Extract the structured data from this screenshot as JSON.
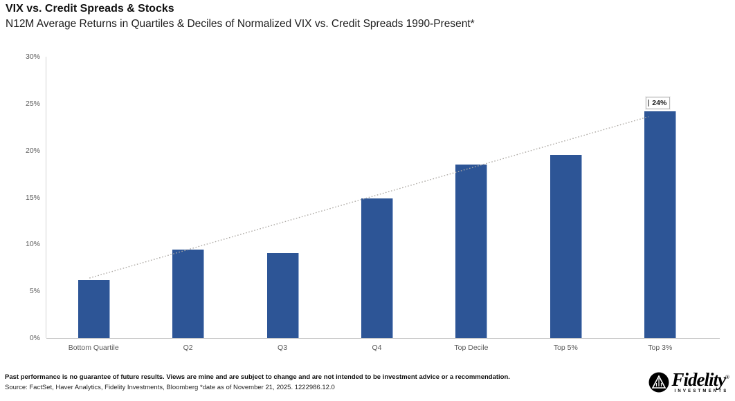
{
  "header": {
    "title": "VIX vs. Credit Spreads & Stocks",
    "subtitle": "N12M Average Returns in Quartiles & Deciles of Normalized VIX vs. Credit Spreads 1990-Present*"
  },
  "chart_data": {
    "type": "bar",
    "categories": [
      "Bottom Quartile",
      "Q2",
      "Q3",
      "Q4",
      "Top Decile",
      "Top 5%",
      "Top 3%"
    ],
    "values": [
      6.2,
      9.4,
      9.1,
      14.9,
      18.5,
      19.5,
      24.2
    ],
    "data_labels": [
      null,
      null,
      null,
      null,
      null,
      null,
      "24%"
    ],
    "yticks": [
      "0%",
      "5%",
      "10%",
      "15%",
      "20%",
      "25%",
      "30%"
    ],
    "ylim": [
      0,
      30
    ],
    "grid": false,
    "legend": false,
    "bar_color": "#2d5596",
    "axis_color": "#cfcfcf",
    "tick_label_color": "#595959",
    "trendline": {
      "style": "dotted",
      "color": "#aeaaa5",
      "from_value": 6.4,
      "to_value": 23.6
    }
  },
  "footer": {
    "disclaimer": "Past performance is no guarantee of future results. Views are mine and are subject to change and are not intended to be investment advice or a recommendation.",
    "source": "Source: FactSet, Haver Analytics, Fidelity Investments, Bloomberg *date as of November 21, 2025. 1222986.12.0"
  },
  "logo": {
    "brand": "Fidelity",
    "registered_mark": "®",
    "sub": "INVESTMENTS"
  }
}
